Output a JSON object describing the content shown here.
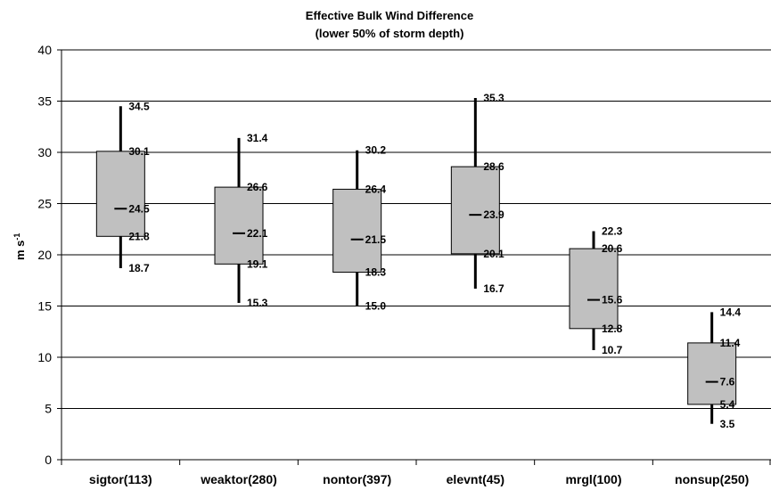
{
  "chart_data": {
    "type": "box",
    "title": "Effective Bulk Wind Difference",
    "subtitle": "(lower 50% of storm depth)",
    "ylabel_main": "m s",
    "ylabel_sup": "-1",
    "ylim": [
      0,
      40
    ],
    "yticks": [
      0,
      5,
      10,
      15,
      20,
      25,
      30,
      35,
      40
    ],
    "grid": true,
    "box_color": "#c0c0c0",
    "categories": [
      "sigtor(113)",
      "weaktor(280)",
      "nontor(397)",
      "elevnt(45)",
      "mrgl(100)",
      "nonsup(250)"
    ],
    "boxes": [
      {
        "min": 18.7,
        "q1": 21.8,
        "median": 24.5,
        "q3": 30.1,
        "max": 34.5,
        "labels": [
          "34.5",
          "30.1",
          "24.5",
          "21.8",
          "18.7"
        ]
      },
      {
        "min": 15.3,
        "q1": 19.1,
        "median": 22.1,
        "q3": 26.6,
        "max": 31.4,
        "labels": [
          "31.4",
          "26.6",
          "22.1",
          "19.1",
          "15.3"
        ]
      },
      {
        "min": 15.0,
        "q1": 18.3,
        "median": 21.5,
        "q3": 26.4,
        "max": 30.2,
        "labels": [
          "30.2",
          "26.4",
          "21.5",
          "18.3",
          "15.0"
        ]
      },
      {
        "min": 16.7,
        "q1": 20.1,
        "median": 23.9,
        "q3": 28.6,
        "max": 35.3,
        "labels": [
          "35.3",
          "28.6",
          "23.9",
          "20.1",
          "16.7"
        ]
      },
      {
        "min": 10.7,
        "q1": 12.8,
        "median": 15.6,
        "q3": 20.6,
        "max": 22.3,
        "labels": [
          "22.3",
          "20.6",
          "15.6",
          "12.8",
          "10.7"
        ]
      },
      {
        "min": 3.5,
        "q1": 5.4,
        "median": 7.6,
        "q3": 11.4,
        "max": 14.4,
        "labels": [
          "14.4",
          "11.4",
          "7.6",
          "5.4",
          "3.5"
        ]
      }
    ]
  }
}
